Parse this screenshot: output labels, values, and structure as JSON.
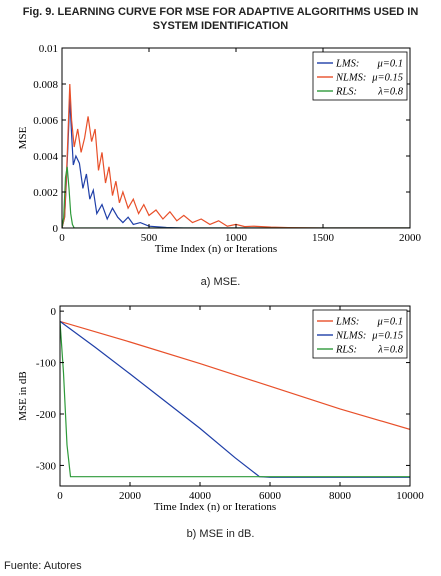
{
  "figure": {
    "title_line1": "Fig. 9. LEARNING CURVE FOR MSE FOR ADAPTIVE ALGORITHMS USED IN",
    "title_line2": "SYSTEM IDENTIFICATION",
    "source": "Fuente: Autores"
  },
  "chart_data": [
    {
      "type": "line",
      "caption": "a) MSE.",
      "xlabel": "Time Index (n) or Iterations",
      "ylabel": "MSE",
      "xlim": [
        0,
        2000
      ],
      "ylim": [
        0,
        0.01
      ],
      "xticks": [
        0,
        500,
        1000,
        1500,
        2000
      ],
      "xtick_labels": [
        "0",
        "500",
        "1000",
        "1500",
        "2000"
      ],
      "yticks": [
        0,
        0.002,
        0.004,
        0.006,
        0.008,
        0.01
      ],
      "ytick_labels": [
        "0",
        "0.002",
        "0.004",
        "0.006",
        "0.008",
        "0.01"
      ],
      "grid": false,
      "legend_position": "top-right",
      "series": [
        {
          "name": "LMS:",
          "param": "μ=0.1",
          "color": "#1f3fa8",
          "x": [
            0,
            15,
            25,
            35,
            45,
            55,
            65,
            80,
            100,
            120,
            140,
            160,
            180,
            200,
            230,
            260,
            290,
            320,
            350,
            380,
            410,
            450,
            500,
            600,
            700,
            2000
          ],
          "y": [
            0,
            0.0006,
            0.0025,
            0.0048,
            0.0072,
            0.0052,
            0.0035,
            0.004,
            0.0036,
            0.0022,
            0.003,
            0.0016,
            0.0021,
            0.0008,
            0.0013,
            0.0005,
            0.0011,
            0.0006,
            0.0003,
            0.0006,
            0.0002,
            0.0003,
            0.0001,
            3e-05,
            0.0,
            0.0
          ]
        },
        {
          "name": "NLMS:",
          "param": "μ=0.15",
          "color": "#e8502a",
          "x": [
            0,
            15,
            30,
            45,
            55,
            70,
            90,
            110,
            130,
            150,
            170,
            190,
            210,
            230,
            250,
            270,
            290,
            310,
            330,
            350,
            380,
            410,
            440,
            470,
            500,
            540,
            580,
            620,
            660,
            700,
            750,
            800,
            850,
            900,
            950,
            1000,
            1050,
            1100,
            1200,
            1300,
            1500,
            2000
          ],
          "y": [
            0,
            0.0006,
            0.004,
            0.008,
            0.006,
            0.0045,
            0.0055,
            0.0042,
            0.005,
            0.0062,
            0.0048,
            0.0055,
            0.0032,
            0.0042,
            0.0025,
            0.0034,
            0.0018,
            0.0026,
            0.0014,
            0.002,
            0.0011,
            0.0016,
            0.0008,
            0.0013,
            0.0007,
            0.001,
            0.0005,
            0.0009,
            0.0004,
            0.0007,
            0.0003,
            0.0005,
            0.0002,
            0.0004,
            0.0001,
            0.0002,
            8e-05,
            0.0001,
            5e-05,
            2e-05,
            0.0,
            0.0
          ]
        },
        {
          "name": "RLS:",
          "param": "λ=0.8",
          "color": "#2e9a3a",
          "x": [
            0,
            10,
            20,
            30,
            40,
            50,
            60,
            70,
            2000
          ],
          "y": [
            0,
            0.0006,
            0.0028,
            0.0034,
            0.0022,
            0.0008,
            0.0002,
            0.0,
            0.0
          ]
        }
      ]
    },
    {
      "type": "line",
      "caption": "b) MSE in dB.",
      "xlabel": "Time Index (n) or Iterations",
      "ylabel": "MSE in dB",
      "xlim": [
        0,
        10000
      ],
      "ylim": [
        -340,
        10
      ],
      "xticks": [
        0,
        2000,
        4000,
        6000,
        8000,
        10000
      ],
      "xtick_labels": [
        "0",
        "2000",
        "4000",
        "6000",
        "8000",
        "10000"
      ],
      "yticks": [
        0,
        -100,
        -200,
        -300
      ],
      "ytick_labels": [
        "0",
        "-100",
        "-200",
        "-300"
      ],
      "grid": false,
      "legend_position": "top-right",
      "series": [
        {
          "name": "LMS:",
          "param": "μ=0.1",
          "color": "#e8502a",
          "x": [
            0,
            2000,
            4000,
            6000,
            8000,
            10000
          ],
          "y": [
            -20,
            -60,
            -102,
            -146,
            -190,
            -230
          ]
        },
        {
          "name": "NLMS:",
          "param": "μ=0.15",
          "color": "#1f3fa8",
          "x": [
            0,
            1000,
            2000,
            3000,
            4000,
            5000,
            5700,
            6000,
            8000,
            10000
          ],
          "y": [
            -20,
            -70,
            -122,
            -175,
            -228,
            -285,
            -322,
            -323,
            -323,
            -323
          ]
        },
        {
          "name": "RLS:",
          "param": "λ=0.8",
          "color": "#2e9a3a",
          "x": [
            0,
            100,
            200,
            300,
            2000,
            4000,
            6000,
            8000,
            10000
          ],
          "y": [
            -20,
            -120,
            -260,
            -322,
            -322,
            -322,
            -322,
            -322,
            -322
          ]
        }
      ]
    }
  ]
}
